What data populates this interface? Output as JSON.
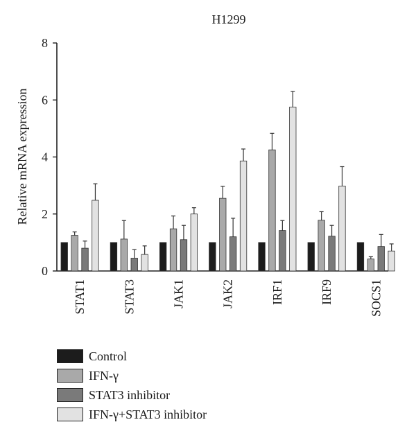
{
  "chart_data": {
    "type": "bar",
    "title": "H1299",
    "ylabel": "Relative mRNA expression",
    "xlabel": "",
    "ylim": [
      0,
      8
    ],
    "yticks": [
      0,
      2,
      4,
      6,
      8
    ],
    "grid": false,
    "legend_position": "bottom-left",
    "categories": [
      "STAT1",
      "STAT3",
      "JAK1",
      "JAK2",
      "IRF1",
      "IRF9",
      "SOCS1"
    ],
    "series": [
      {
        "name": "Control",
        "color": "#1c1c1c",
        "values": [
          1,
          1,
          1,
          1,
          1,
          1,
          1
        ],
        "errors": [
          0,
          0,
          0,
          0,
          0,
          0,
          0
        ]
      },
      {
        "name": "IFN-γ",
        "color": "#a9a9a9",
        "values": [
          1.25,
          1.12,
          1.48,
          2.55,
          4.25,
          1.78,
          0.42
        ],
        "errors": [
          0.12,
          0.65,
          0.45,
          0.42,
          0.58,
          0.3,
          0.08
        ]
      },
      {
        "name": "STAT3 inhibitor",
        "color": "#7a7a7a",
        "values": [
          0.8,
          0.45,
          1.1,
          1.2,
          1.42,
          1.22,
          0.86
        ],
        "errors": [
          0.25,
          0.3,
          0.5,
          0.65,
          0.35,
          0.38,
          0.42
        ]
      },
      {
        "name": "IFN-γ+STAT3 inhibitor",
        "color": "#e2e2e2",
        "values": [
          2.48,
          0.58,
          2.0,
          3.86,
          5.75,
          2.98,
          0.7
        ],
        "errors": [
          0.58,
          0.3,
          0.22,
          0.42,
          0.55,
          0.68,
          0.25
        ]
      }
    ]
  }
}
